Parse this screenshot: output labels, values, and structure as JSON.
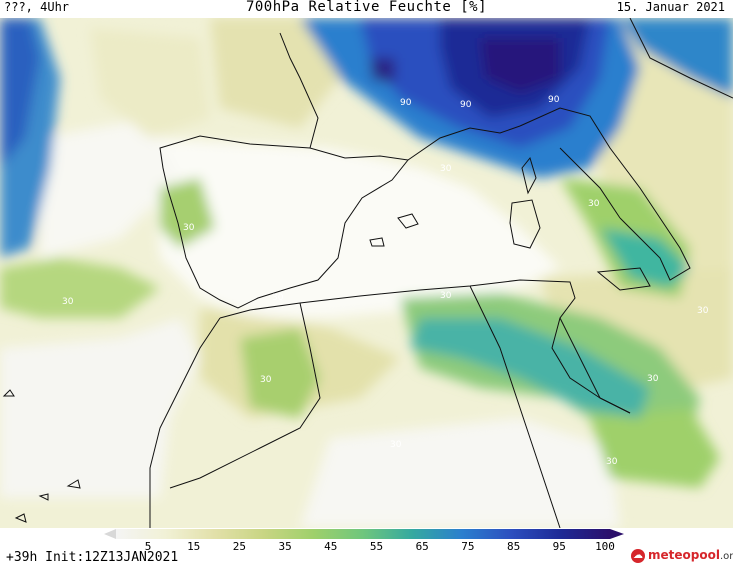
{
  "header": {
    "left_text": "???, 4Uhr",
    "title": "700hPa Relative Feuchte [%]",
    "date": "15. Januar 2021"
  },
  "footer": {
    "init_text": "+39h Init:12Z13JAN2021",
    "logo_name": "meteopool",
    "logo_suffix": ".org",
    "logo_icon": "weather-logo-icon"
  },
  "legend": {
    "ticks": [
      "5",
      "15",
      "25",
      "35",
      "45",
      "55",
      "65",
      "75",
      "85",
      "95",
      "100"
    ],
    "colors": [
      "#f4f4f4",
      "#f1f1d6",
      "#e2e0a9",
      "#c8d583",
      "#9fd06b",
      "#6fc67d",
      "#35a9a0",
      "#2b7fce",
      "#2c4fbf",
      "#1e2a96",
      "#2b0f6b"
    ]
  },
  "contour_labels": [
    {
      "text": "90"
    },
    {
      "text": "90"
    },
    {
      "text": "90"
    },
    {
      "text": "30"
    },
    {
      "text": "30"
    },
    {
      "text": "30"
    },
    {
      "text": "30"
    },
    {
      "text": "30"
    },
    {
      "text": "30"
    },
    {
      "text": "30"
    },
    {
      "text": "30"
    },
    {
      "text": "30"
    },
    {
      "text": "30"
    },
    {
      "text": "30"
    },
    {
      "text": "30"
    }
  ]
}
